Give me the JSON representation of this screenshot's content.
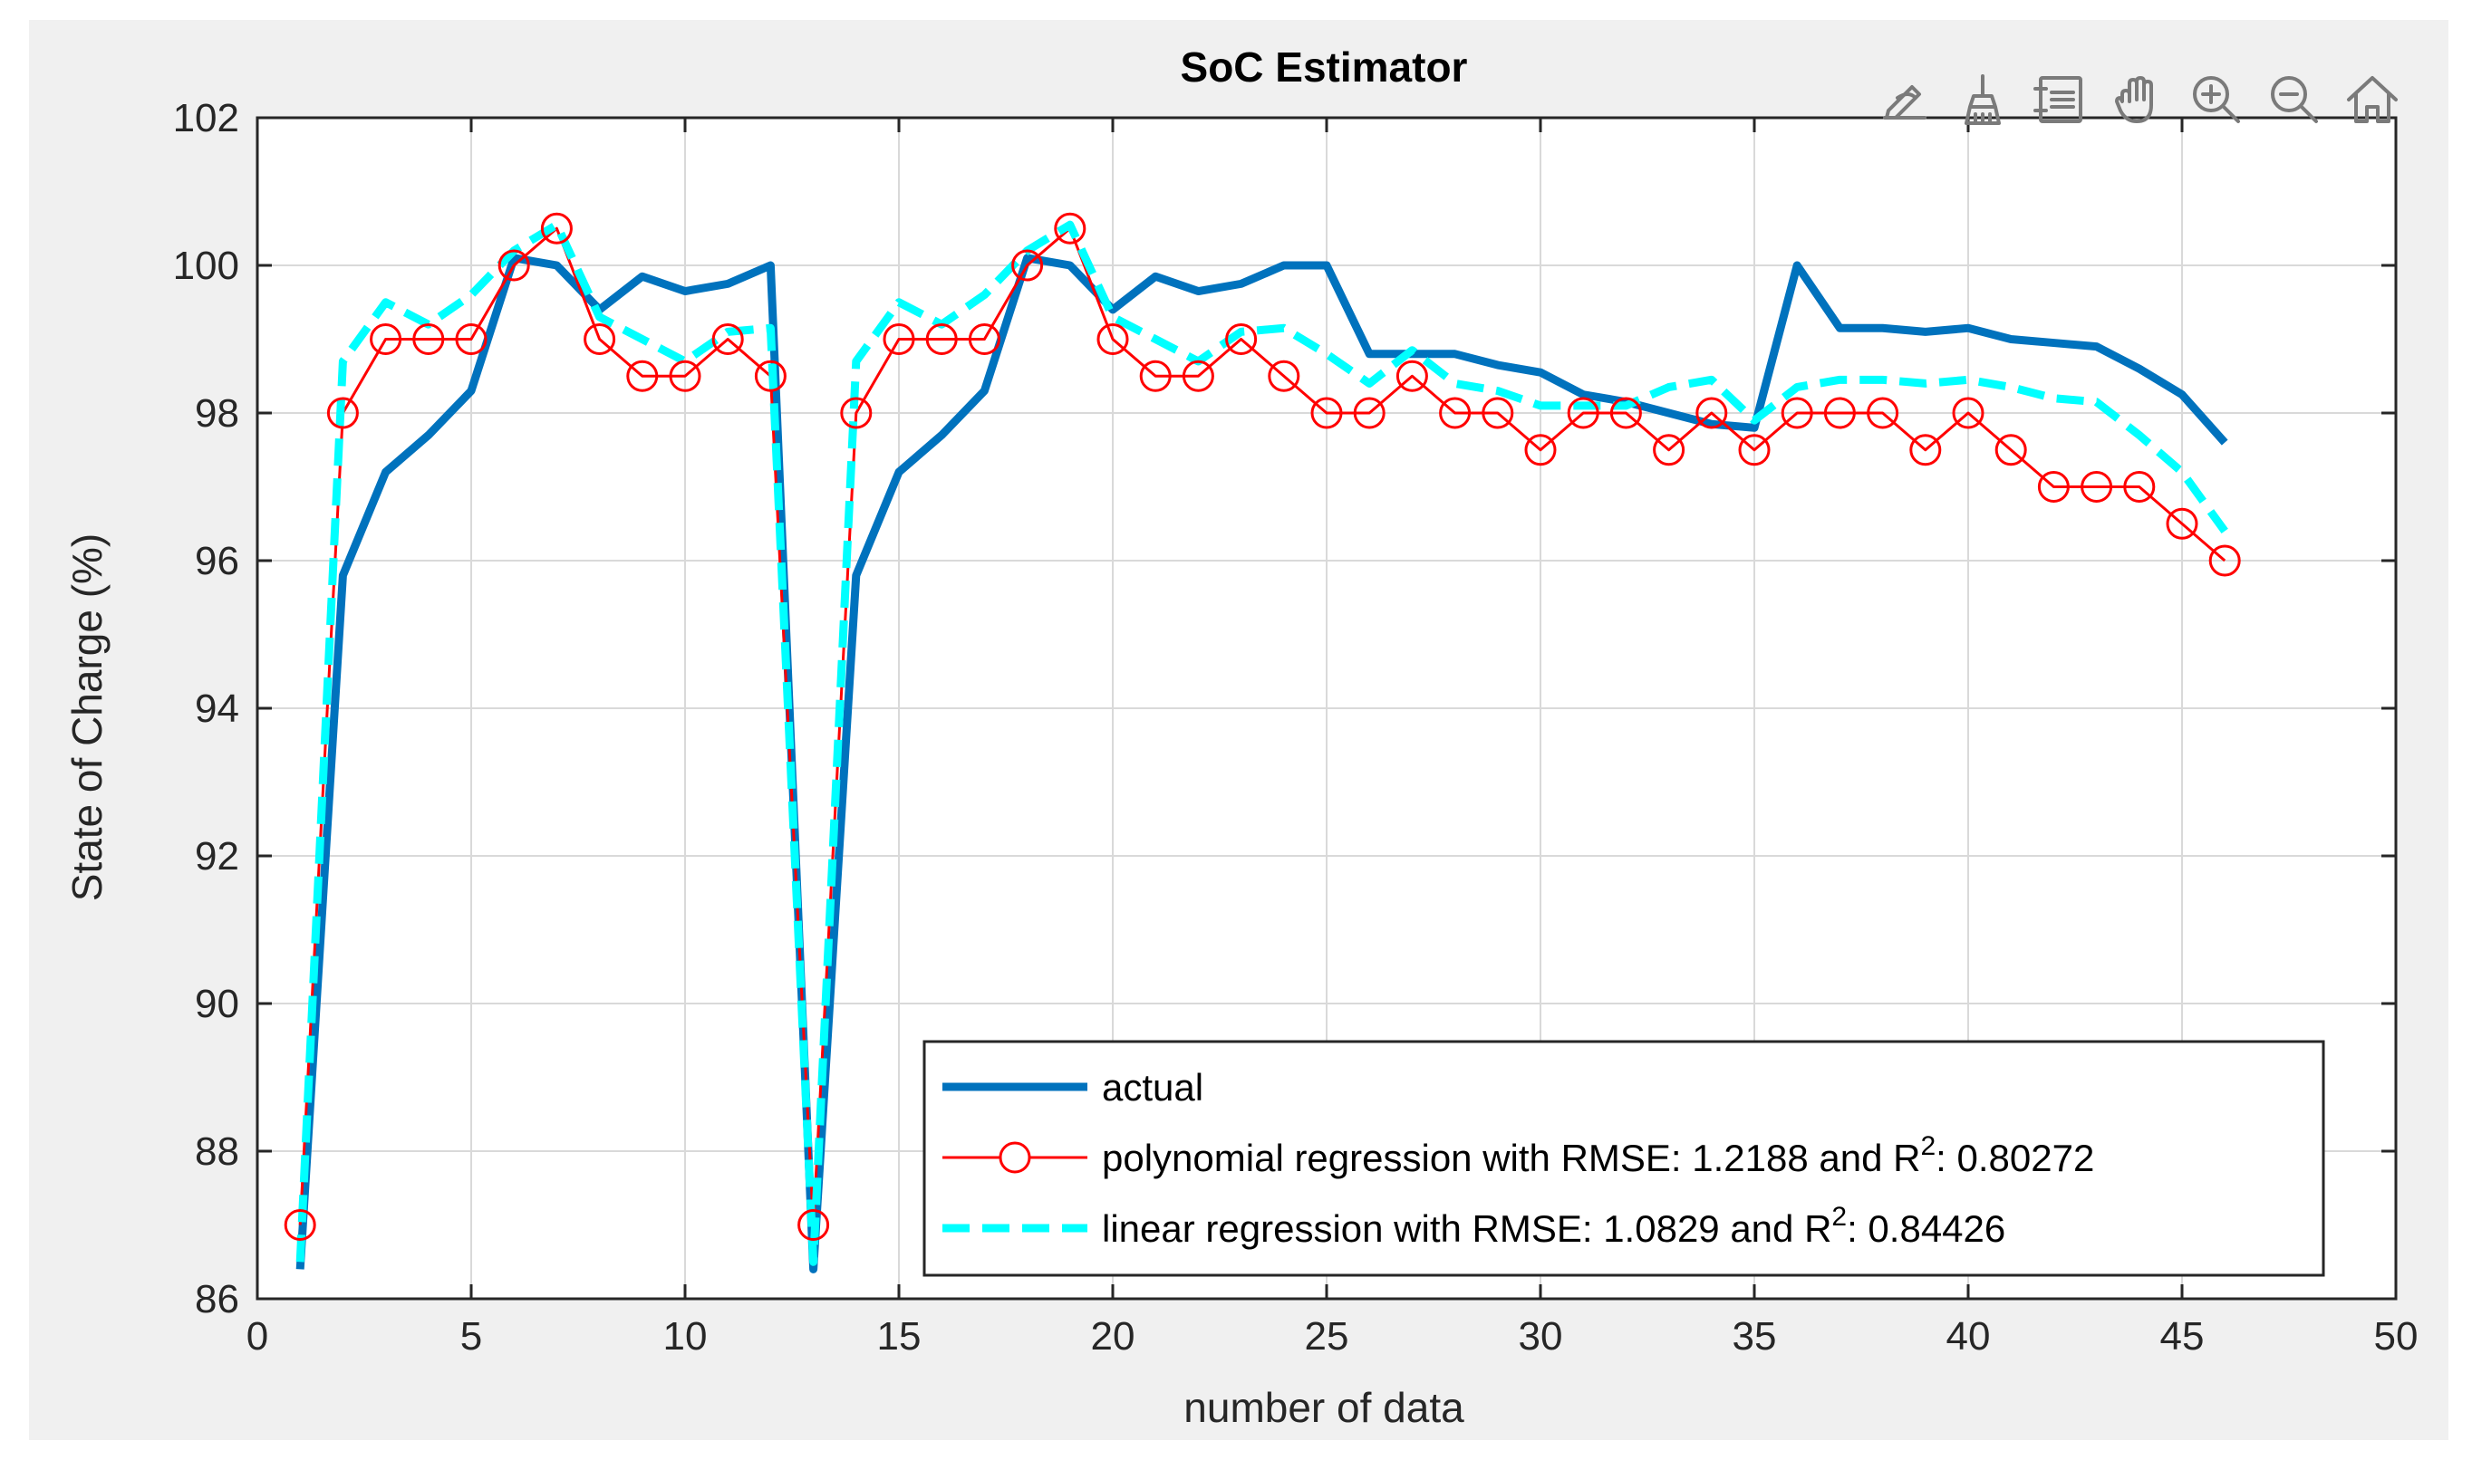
{
  "toolbar": {
    "icons": [
      "edit-plot-icon",
      "brush-icon",
      "legend-icon",
      "pan-icon",
      "zoom-in-icon",
      "zoom-out-icon",
      "home-icon"
    ]
  },
  "colors": {
    "actual": "#0072bd",
    "polynomial": "#ff0000",
    "linear": "#00ffff",
    "grid": "#d9d9d9",
    "axes_bg": "#ffffff",
    "panel_bg": "#f0f0f0"
  },
  "chart_data": {
    "type": "line",
    "title": "SoC Estimator",
    "xlabel": "number of data",
    "ylabel": "State of Charge (%)",
    "xlim": [
      0,
      50
    ],
    "ylim": [
      86,
      102
    ],
    "xticks": [
      0,
      5,
      10,
      15,
      20,
      25,
      30,
      35,
      40,
      45,
      50
    ],
    "yticks": [
      86,
      88,
      90,
      92,
      94,
      96,
      98,
      100,
      102
    ],
    "grid": true,
    "legend_position": "bottom-right",
    "x": [
      1,
      2,
      3,
      4,
      5,
      6,
      7,
      8,
      9,
      10,
      11,
      12,
      13,
      14,
      15,
      16,
      17,
      18,
      19,
      20,
      21,
      22,
      23,
      24,
      25,
      26,
      27,
      28,
      29,
      30,
      31,
      32,
      33,
      34,
      35,
      36,
      37,
      38,
      39,
      40,
      41,
      42,
      43,
      44,
      45,
      46
    ],
    "series": [
      {
        "name": "actual",
        "legend_label": "actual",
        "style": "solid-thick",
        "values": [
          86.4,
          95.8,
          97.2,
          97.7,
          98.3,
          100.1,
          100.0,
          99.4,
          99.85,
          99.65,
          99.75,
          100.0,
          86.4,
          95.8,
          97.2,
          97.7,
          98.3,
          100.1,
          100.0,
          99.4,
          99.85,
          99.65,
          99.75,
          100.0,
          100.0,
          98.8,
          98.8,
          98.8,
          98.65,
          98.55,
          98.25,
          98.15,
          98.0,
          97.85,
          97.8,
          100.0,
          99.15,
          99.15,
          99.1,
          99.15,
          99.0,
          98.95,
          98.9,
          98.6,
          98.25,
          97.6
        ]
      },
      {
        "name": "polynomial",
        "legend_label": "polynomial regression with RMSE: 1.2188 and R",
        "legend_sup": "2",
        "legend_tail": ": 0.80272",
        "style": "solid-circle-markers",
        "values": [
          87.0,
          98.0,
          99.0,
          99.0,
          99.0,
          100.0,
          100.5,
          99.0,
          98.5,
          98.5,
          99.0,
          98.5,
          87.0,
          98.0,
          99.0,
          99.0,
          99.0,
          100.0,
          100.5,
          99.0,
          98.5,
          98.5,
          99.0,
          98.5,
          98.0,
          98.0,
          98.5,
          98.0,
          98.0,
          97.5,
          98.0,
          98.0,
          97.5,
          98.0,
          97.5,
          98.0,
          98.0,
          98.0,
          97.5,
          98.0,
          97.5,
          97.0,
          97.0,
          97.0,
          96.5,
          96.0
        ]
      },
      {
        "name": "linear",
        "legend_label": "linear regression with RMSE: 1.0829 and R",
        "legend_sup": "2",
        "legend_tail": ": 0.84426",
        "style": "dashed-thick",
        "values": [
          86.5,
          98.7,
          99.5,
          99.2,
          99.6,
          100.2,
          100.55,
          99.3,
          99.0,
          98.7,
          99.1,
          99.15,
          86.5,
          98.7,
          99.5,
          99.2,
          99.6,
          100.2,
          100.55,
          99.3,
          99.0,
          98.7,
          99.1,
          99.15,
          98.8,
          98.4,
          98.85,
          98.4,
          98.3,
          98.1,
          98.1,
          98.1,
          98.35,
          98.45,
          97.9,
          98.35,
          98.45,
          98.45,
          98.4,
          98.45,
          98.35,
          98.2,
          98.15,
          97.7,
          97.2,
          96.4
        ]
      }
    ]
  }
}
